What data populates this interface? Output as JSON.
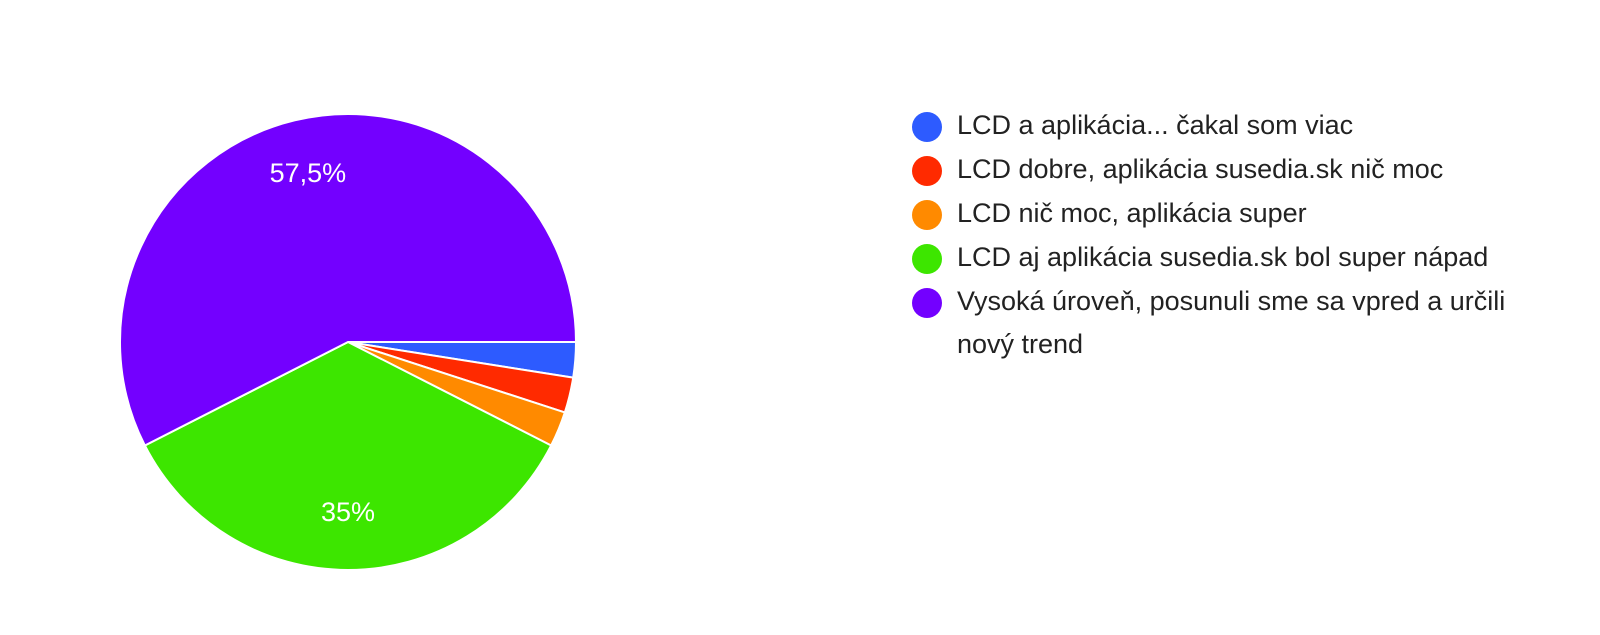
{
  "chart_data": {
    "type": "pie",
    "categories": [
      "LCD a aplikácia... čakal som viac",
      "LCD dobre, aplikácia susedia.sk nič moc",
      "LCD nič moc, aplikácia super",
      "LCD aj aplikácia susedia.sk bol super nápad",
      "Vysoká úroveň, posunuli sme sa vpred a určili nový trend"
    ],
    "values": [
      2.5,
      2.5,
      2.5,
      35,
      57.5
    ],
    "value_labels": [
      null,
      null,
      null,
      "35%",
      "57,5%"
    ],
    "colors": [
      "#2d5bff",
      "#ff2a00",
      "#ff8a00",
      "#3de600",
      "#7300ff"
    ],
    "legend": "right"
  }
}
